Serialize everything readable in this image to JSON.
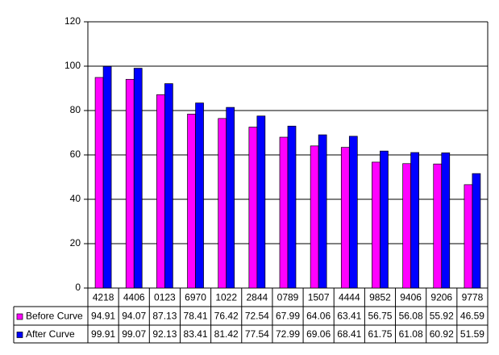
{
  "chart_data": {
    "type": "bar",
    "categories": [
      "4218",
      "4406",
      "0123",
      "6970",
      "1022",
      "2844",
      "0789",
      "1507",
      "4444",
      "9852",
      "9406",
      "9206",
      "9778"
    ],
    "series": [
      {
        "name": "Before Curve",
        "color": "#ff00ff",
        "values": [
          94.91,
          94.07,
          87.13,
          78.41,
          76.42,
          72.54,
          67.99,
          64.06,
          63.41,
          56.75,
          56.08,
          55.92,
          46.59
        ]
      },
      {
        "name": "After Curve",
        "color": "#0000ff",
        "values": [
          99.91,
          99.07,
          92.13,
          83.41,
          81.42,
          77.54,
          72.99,
          69.06,
          68.41,
          61.75,
          61.08,
          60.92,
          51.59
        ]
      }
    ],
    "ylim": [
      0,
      120
    ],
    "yticks": [
      0,
      20,
      40,
      60,
      80,
      100,
      120
    ],
    "grid": true,
    "data_table": true
  }
}
